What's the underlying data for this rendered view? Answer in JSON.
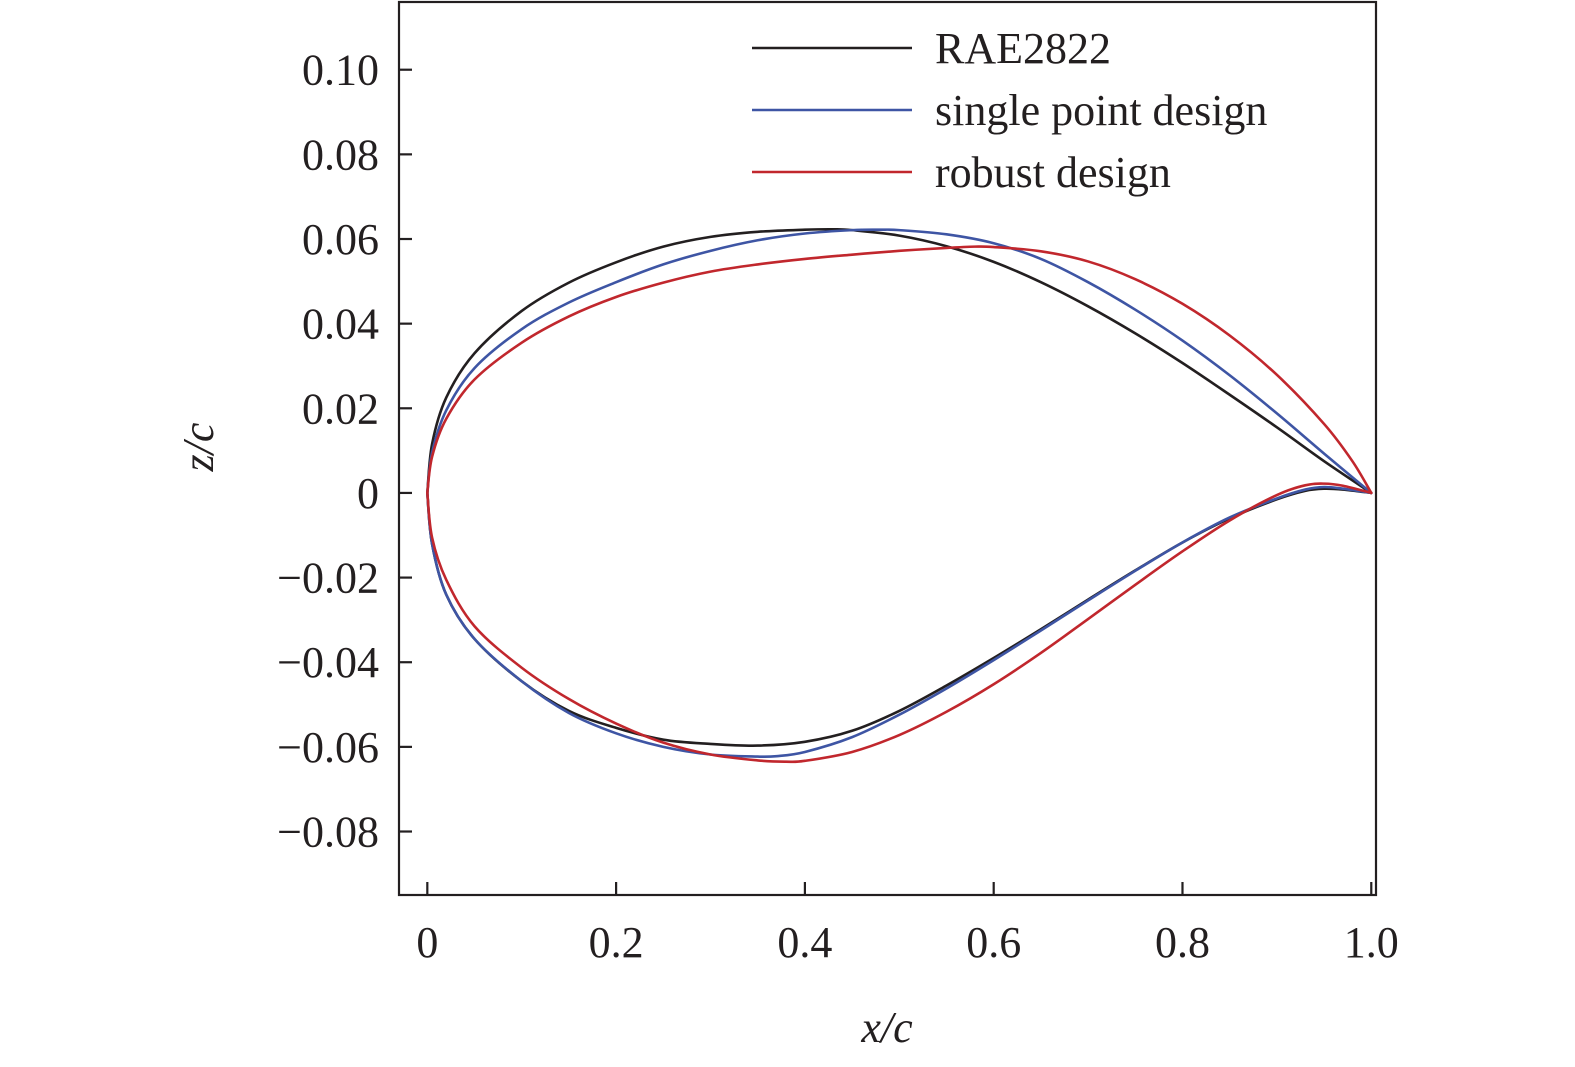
{
  "chart_data": {
    "type": "line",
    "title": "",
    "xlabel": "x/c",
    "ylabel": "z/c",
    "xlim": [
      -0.03,
      1.005
    ],
    "ylim": [
      -0.095,
      0.116
    ],
    "grid": false,
    "legend_position": "top-right",
    "x_ticks": [
      0,
      0.2,
      0.4,
      0.6,
      0.8,
      1.0
    ],
    "x_tick_labels": [
      "0",
      "0.2",
      "0.4",
      "0.6",
      "0.8",
      "1.0"
    ],
    "y_ticks": [
      0.1,
      0.08,
      0.06,
      0.04,
      0.02,
      0,
      -0.02,
      -0.04,
      -0.06,
      -0.08
    ],
    "y_tick_labels": [
      "0.10",
      "0.08",
      "0.06",
      "0.04",
      "0.02",
      "0",
      "−0.02",
      "−0.04",
      "−0.06",
      "−0.08"
    ],
    "series": [
      {
        "name": "RAE2822",
        "color": "#231f20",
        "upper": {
          "x": [
            0,
            0.005,
            0.02,
            0.05,
            0.1,
            0.15,
            0.2,
            0.25,
            0.3,
            0.35,
            0.4,
            0.43,
            0.45,
            0.5,
            0.55,
            0.6,
            0.65,
            0.7,
            0.75,
            0.8,
            0.85,
            0.9,
            0.95,
            1.0
          ],
          "y": [
            0,
            0.0115,
            0.0225,
            0.033,
            0.043,
            0.0497,
            0.0545,
            0.0582,
            0.0605,
            0.0617,
            0.0622,
            0.0623,
            0.0621,
            0.0608,
            0.0583,
            0.0546,
            0.0498,
            0.0441,
            0.0377,
            0.0307,
            0.0232,
            0.0155,
            0.0075,
            0
          ]
        },
        "lower": {
          "x": [
            0,
            0.005,
            0.02,
            0.05,
            0.1,
            0.15,
            0.2,
            0.25,
            0.3,
            0.35,
            0.4,
            0.45,
            0.5,
            0.55,
            0.6,
            0.65,
            0.7,
            0.75,
            0.8,
            0.85,
            0.9,
            0.93,
            0.95,
            0.97,
            1.0
          ],
          "y": [
            0,
            -0.012,
            -0.024,
            -0.0345,
            -0.0445,
            -0.0515,
            -0.0555,
            -0.0583,
            -0.0593,
            -0.0597,
            -0.0588,
            -0.0562,
            -0.0515,
            -0.0455,
            -0.039,
            -0.0322,
            -0.0252,
            -0.0183,
            -0.0117,
            -0.006,
            -0.0015,
            0.0005,
            0.001,
            0.0008,
            0
          ]
        }
      },
      {
        "name": "single point design",
        "color": "#3e55a4",
        "upper": {
          "x": [
            0,
            0.005,
            0.02,
            0.05,
            0.1,
            0.15,
            0.2,
            0.25,
            0.3,
            0.35,
            0.4,
            0.45,
            0.48,
            0.5,
            0.55,
            0.6,
            0.65,
            0.7,
            0.75,
            0.8,
            0.85,
            0.9,
            0.95,
            1.0
          ],
          "y": [
            0,
            0.0095,
            0.0195,
            0.0295,
            0.0387,
            0.045,
            0.0498,
            0.054,
            0.0572,
            0.0597,
            0.0613,
            0.0621,
            0.0622,
            0.0621,
            0.0611,
            0.059,
            0.0553,
            0.0498,
            0.0433,
            0.036,
            0.0278,
            0.0188,
            0.0093,
            0
          ]
        },
        "lower": {
          "x": [
            0,
            0.005,
            0.02,
            0.05,
            0.1,
            0.15,
            0.2,
            0.25,
            0.3,
            0.35,
            0.37,
            0.4,
            0.45,
            0.5,
            0.55,
            0.6,
            0.65,
            0.7,
            0.75,
            0.8,
            0.85,
            0.9,
            0.93,
            0.95,
            0.97,
            1.0
          ],
          "y": [
            0,
            -0.012,
            -0.024,
            -0.0345,
            -0.0445,
            -0.052,
            -0.0568,
            -0.06,
            -0.0618,
            -0.0623,
            -0.0622,
            -0.0612,
            -0.0577,
            -0.0524,
            -0.0462,
            -0.0395,
            -0.0325,
            -0.0254,
            -0.0184,
            -0.0117,
            -0.0058,
            -0.0013,
            0.0008,
            0.0014,
            0.001,
            0
          ]
        }
      },
      {
        "name": "robust design",
        "color": "#c1272d",
        "upper": {
          "x": [
            0,
            0.005,
            0.02,
            0.05,
            0.1,
            0.15,
            0.2,
            0.25,
            0.3,
            0.35,
            0.4,
            0.45,
            0.5,
            0.55,
            0.58,
            0.6,
            0.65,
            0.7,
            0.75,
            0.8,
            0.85,
            0.9,
            0.95,
            0.98,
            1.0
          ],
          "y": [
            0,
            0.0085,
            0.0175,
            0.0268,
            0.0355,
            0.0417,
            0.0463,
            0.0497,
            0.0523,
            0.054,
            0.0553,
            0.0563,
            0.0572,
            0.0579,
            0.0582,
            0.0581,
            0.0571,
            0.0547,
            0.0505,
            0.0447,
            0.0372,
            0.0279,
            0.0163,
            0.0075,
            0
          ]
        },
        "lower": {
          "x": [
            0,
            0.005,
            0.02,
            0.05,
            0.1,
            0.15,
            0.2,
            0.25,
            0.3,
            0.35,
            0.38,
            0.4,
            0.45,
            0.5,
            0.55,
            0.6,
            0.65,
            0.7,
            0.75,
            0.8,
            0.85,
            0.9,
            0.93,
            0.95,
            0.97,
            1.0
          ],
          "y": [
            0,
            -0.0105,
            -0.0205,
            -0.0315,
            -0.0413,
            -0.0487,
            -0.0545,
            -0.059,
            -0.0618,
            -0.0632,
            -0.0635,
            -0.0633,
            -0.0612,
            -0.0572,
            -0.0517,
            -0.0452,
            -0.0378,
            -0.0298,
            -0.0217,
            -0.0138,
            -0.0065,
            -0.0005,
            0.0018,
            0.0022,
            0.0017,
            0
          ]
        }
      }
    ]
  }
}
